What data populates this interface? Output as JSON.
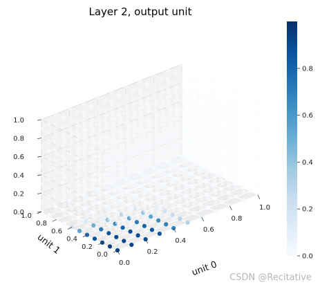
{
  "chart_data": {
    "type": "scatter",
    "projection": "3d",
    "title": "Layer 2, output unit",
    "xlabel": "unit 0",
    "ylabel": "unit 1",
    "zlabel": "",
    "xlim": [
      0,
      1
    ],
    "ylim": [
      0,
      1
    ],
    "zlim": [
      0,
      1
    ],
    "x_ticks": [
      "0.0",
      "0.2",
      "0.4",
      "0.6",
      "0.8",
      "1.0"
    ],
    "y_ticks": [
      "0.0",
      "0.2",
      "0.4",
      "0.6",
      "0.8",
      "1.0"
    ],
    "z_ticks": [
      "0.0",
      "0.2",
      "0.4",
      "0.6",
      "0.8",
      "1.0"
    ],
    "colormap": "Blues",
    "colorbar": {
      "range": [
        0,
        1
      ],
      "ticks": [
        "0.0",
        "0.2",
        "0.4",
        "0.6",
        "0.8"
      ]
    },
    "grid": "on",
    "grid_steps": [
      0,
      0.1,
      0.2,
      0.3,
      0.4,
      0.5,
      0.6,
      0.7,
      0.8,
      0.9,
      1.0
    ],
    "pattern": "output near 1 on the z = 0 plane for x < 0.5 and y < 0.5 (strongest near the origin); output near 0 elsewhere",
    "bottom_layer_points": [
      {
        "x": 0.0,
        "y": 0.0,
        "z": 0,
        "value": 0.95
      },
      {
        "x": 0.1,
        "y": 0.0,
        "z": 0,
        "value": 0.92
      },
      {
        "x": 0.2,
        "y": 0.0,
        "z": 0,
        "value": 0.9
      },
      {
        "x": 0.3,
        "y": 0.0,
        "z": 0,
        "value": 0.85
      },
      {
        "x": 0.4,
        "y": 0.0,
        "z": 0,
        "value": 0.7
      },
      {
        "x": 0.5,
        "y": 0.0,
        "z": 0,
        "value": 0.3
      },
      {
        "x": 0.6,
        "y": 0.0,
        "z": 0,
        "value": 0.05
      },
      {
        "x": 0.0,
        "y": 0.1,
        "z": 0,
        "value": 0.93
      },
      {
        "x": 0.1,
        "y": 0.1,
        "z": 0,
        "value": 0.92
      },
      {
        "x": 0.2,
        "y": 0.1,
        "z": 0,
        "value": 0.9
      },
      {
        "x": 0.3,
        "y": 0.1,
        "z": 0,
        "value": 0.85
      },
      {
        "x": 0.4,
        "y": 0.1,
        "z": 0,
        "value": 0.7
      },
      {
        "x": 0.5,
        "y": 0.1,
        "z": 0,
        "value": 0.3
      },
      {
        "x": 0.0,
        "y": 0.2,
        "z": 0,
        "value": 0.92
      },
      {
        "x": 0.1,
        "y": 0.2,
        "z": 0,
        "value": 0.9
      },
      {
        "x": 0.2,
        "y": 0.2,
        "z": 0,
        "value": 0.88
      },
      {
        "x": 0.3,
        "y": 0.2,
        "z": 0,
        "value": 0.8
      },
      {
        "x": 0.4,
        "y": 0.2,
        "z": 0,
        "value": 0.65
      },
      {
        "x": 0.5,
        "y": 0.2,
        "z": 0,
        "value": 0.25
      },
      {
        "x": 0.0,
        "y": 0.3,
        "z": 0,
        "value": 0.88
      },
      {
        "x": 0.1,
        "y": 0.3,
        "z": 0,
        "value": 0.85
      },
      {
        "x": 0.2,
        "y": 0.3,
        "z": 0,
        "value": 0.8
      },
      {
        "x": 0.3,
        "y": 0.3,
        "z": 0,
        "value": 0.72
      },
      {
        "x": 0.4,
        "y": 0.3,
        "z": 0,
        "value": 0.55
      },
      {
        "x": 0.5,
        "y": 0.3,
        "z": 0,
        "value": 0.2
      },
      {
        "x": 0.0,
        "y": 0.4,
        "z": 0,
        "value": 0.78
      },
      {
        "x": 0.1,
        "y": 0.4,
        "z": 0,
        "value": 0.72
      },
      {
        "x": 0.2,
        "y": 0.4,
        "z": 0,
        "value": 0.65
      },
      {
        "x": 0.3,
        "y": 0.4,
        "z": 0,
        "value": 0.55
      },
      {
        "x": 0.4,
        "y": 0.4,
        "z": 0,
        "value": 0.4
      },
      {
        "x": 0.5,
        "y": 0.4,
        "z": 0,
        "value": 0.12
      },
      {
        "x": 0.0,
        "y": 0.5,
        "z": 0,
        "value": 0.55
      },
      {
        "x": 0.1,
        "y": 0.5,
        "z": 0,
        "value": 0.5
      },
      {
        "x": 0.2,
        "y": 0.5,
        "z": 0,
        "value": 0.4
      },
      {
        "x": 0.3,
        "y": 0.5,
        "z": 0,
        "value": 0.3
      },
      {
        "x": 0.4,
        "y": 0.5,
        "z": 0,
        "value": 0.15
      },
      {
        "x": 0.0,
        "y": 0.6,
        "z": 0,
        "value": 0.2
      },
      {
        "x": 0.1,
        "y": 0.6,
        "z": 0,
        "value": 0.15
      },
      {
        "x": 0.2,
        "y": 0.6,
        "z": 0,
        "value": 0.08
      }
    ]
  },
  "watermark": "CSDN @Recitative"
}
